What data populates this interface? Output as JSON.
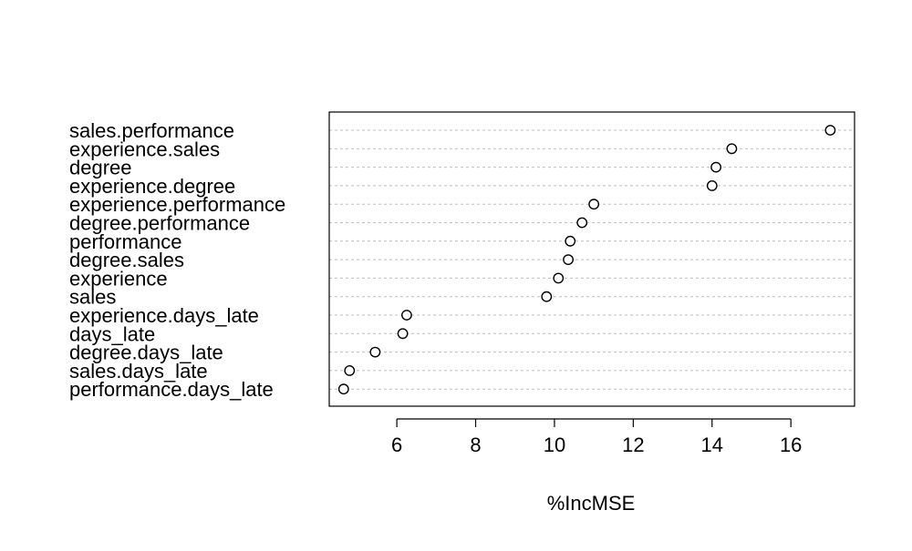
{
  "chart_data": {
    "type": "scatter",
    "style": "dotchart",
    "title": "",
    "xlabel": "%IncMSE",
    "ylabel": "",
    "xlim": [
      4.4,
      17.5
    ],
    "x_ticks": [
      6,
      8,
      10,
      12,
      14,
      16
    ],
    "grid": "dotted horizontal guide lines per row",
    "legend": "none",
    "categories": [
      "sales.performance",
      "experience.sales",
      "degree",
      "experience.degree",
      "experience.performance",
      "degree.performance",
      "performance",
      "degree.sales",
      "experience",
      "sales",
      "experience.days_late",
      "days_late",
      "degree.days_late",
      "sales.days_late",
      "performance.days_late"
    ],
    "values": [
      17.0,
      14.5,
      14.1,
      14.0,
      11.0,
      10.7,
      10.4,
      10.35,
      10.1,
      9.8,
      6.25,
      6.15,
      5.45,
      4.8,
      4.65
    ],
    "colors": {
      "point_stroke": "#000000",
      "point_fill": "#ffffff",
      "guide_line": "#bdbdbd",
      "axis": "#000000"
    }
  }
}
